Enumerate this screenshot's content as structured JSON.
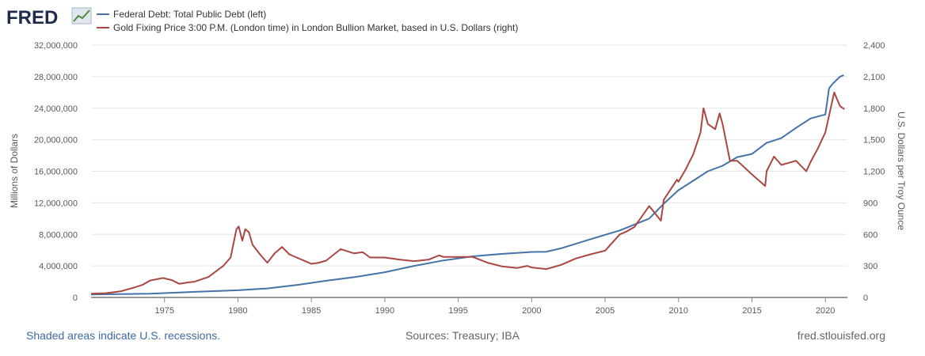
{
  "brand": {
    "logo_text": "FRED"
  },
  "legend": [
    {
      "label": "Federal Debt: Total Public Debt (left)",
      "color": "#4572a7"
    },
    {
      "label": "Gold Fixing Price 3:00 P.M. (London time) in London Bullion Market, based in U.S. Dollars (right)",
      "color": "#aa4643"
    }
  ],
  "footer": {
    "note": "Shaded areas indicate U.S. recessions.",
    "sources": "Sources: Treasury; IBA",
    "site": "fred.stlouisfed.org"
  },
  "chart_data": {
    "type": "line",
    "ylabel_left": "Millions of Dollars",
    "ylabel_right": "U.S. Dollars per Troy Ounce",
    "ylim_left": [
      0,
      32000000
    ],
    "ylim_right": [
      0,
      2400
    ],
    "xlim": [
      1970,
      2021.5
    ],
    "yticks_left": [
      "0",
      "4,000,000",
      "8,000,000",
      "12,000,000",
      "16,000,000",
      "20,000,000",
      "24,000,000",
      "28,000,000",
      "32,000,000"
    ],
    "yticks_right": [
      "0",
      "300",
      "600",
      "900",
      "1,200",
      "1,500",
      "1,800",
      "2,100",
      "2,400"
    ],
    "xticks": [
      "1975",
      "1980",
      "1985",
      "1990",
      "1995",
      "2000",
      "2005",
      "2010",
      "2015",
      "2020"
    ],
    "grid": true,
    "legend_position": "top-left",
    "series": [
      {
        "name": "Federal Debt: Total Public Debt",
        "axis": "left",
        "color": "#4572a7",
        "x": [
          1970,
          1972,
          1974,
          1976,
          1978,
          1980,
          1982,
          1984,
          1986,
          1988,
          1990,
          1992,
          1994,
          1996,
          1998,
          2000,
          2001,
          2002,
          2004,
          2006,
          2008,
          2009,
          2010,
          2011,
          2012,
          2013,
          2014,
          2015,
          2016,
          2017,
          2018,
          2019,
          2020,
          2020.25,
          2020.5,
          2021,
          2021.25
        ],
        "y": [
          380000,
          430000,
          480000,
          630000,
          780000,
          910000,
          1140000,
          1570000,
          2120000,
          2600000,
          3200000,
          4000000,
          4690000,
          5220000,
          5530000,
          5770000,
          5800000,
          6230000,
          7380000,
          8500000,
          10000000,
          11900000,
          13600000,
          14800000,
          16000000,
          16700000,
          17800000,
          18200000,
          19600000,
          20200000,
          21500000,
          22700000,
          23200000,
          26500000,
          27100000,
          28000000,
          28200000
        ]
      },
      {
        "name": "Gold Fixing Price 3:00 P.M. (London time) in London Bullion Market, based in U.S. Dollars",
        "axis": "right",
        "color": "#aa4643",
        "x": [
          1970,
          1971,
          1972,
          1973,
          1973.5,
          1974,
          1974.9,
          1975.5,
          1976,
          1976.7,
          1977,
          1978,
          1979,
          1979.5,
          1979.9,
          1980.05,
          1980.3,
          1980.5,
          1980.75,
          1981,
          1981.5,
          1982,
          1982.5,
          1983,
          1983.5,
          1984,
          1985,
          1985.5,
          1986,
          1987,
          1987.9,
          1988.5,
          1989,
          1990,
          1991,
          1992,
          1993,
          1993.7,
          1994,
          1995,
          1996,
          1997,
          1998,
          1999,
          1999.7,
          2000,
          2001,
          2001.5,
          2002,
          2003,
          2004,
          2005,
          2006,
          2006.5,
          2007,
          2008,
          2008.8,
          2009,
          2009.9,
          2010,
          2010.5,
          2011,
          2011.5,
          2011.7,
          2012,
          2012.5,
          2012.8,
          2013,
          2013.5,
          2014,
          2015,
          2015.9,
          2016,
          2016.5,
          2017,
          2018,
          2018.7,
          2019,
          2019.5,
          2020,
          2020.6,
          2021,
          2021.3
        ],
        "y": [
          36,
          41,
          58,
          97,
          120,
          160,
          185,
          165,
          130,
          145,
          148,
          195,
          300,
          380,
          650,
          675,
          540,
          650,
          620,
          500,
          410,
          330,
          420,
          480,
          410,
          380,
          320,
          330,
          350,
          460,
          420,
          430,
          380,
          380,
          360,
          345,
          360,
          400,
          385,
          385,
          385,
          330,
          295,
          280,
          300,
          285,
          270,
          290,
          310,
          370,
          410,
          445,
          600,
          630,
          670,
          870,
          730,
          930,
          1120,
          1100,
          1220,
          1360,
          1570,
          1800,
          1650,
          1600,
          1750,
          1650,
          1300,
          1300,
          1170,
          1060,
          1200,
          1340,
          1260,
          1300,
          1200,
          1290,
          1420,
          1570,
          1950,
          1820,
          1790
        ]
      }
    ]
  }
}
